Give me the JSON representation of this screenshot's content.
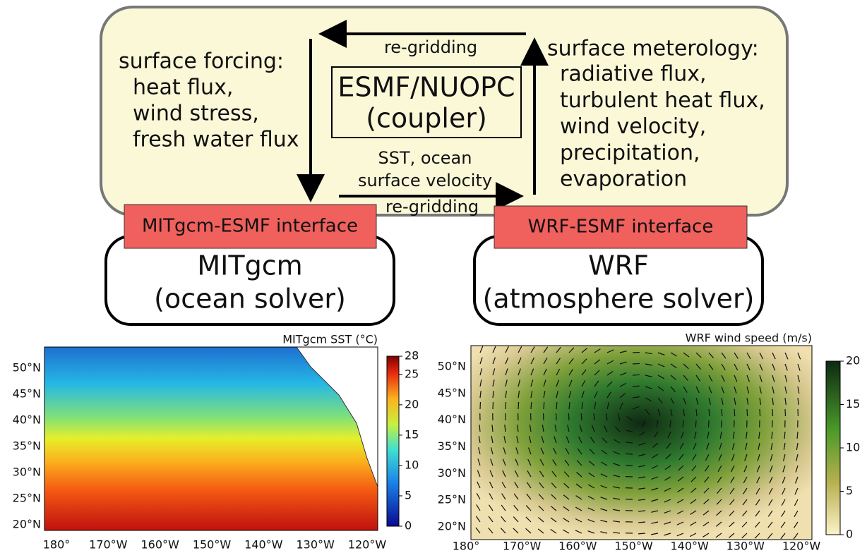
{
  "coupler": {
    "title": "ESMF/NUOPC",
    "subtitle": "(coupler)"
  },
  "ocean_forcing": {
    "heading": "surface forcing:",
    "items": [
      "heat flux,",
      "wind stress,",
      "fresh water flux"
    ]
  },
  "atmosphere_forcing": {
    "heading": "surface meterology:",
    "items": [
      "radiative flux,",
      "turbulent heat flux,",
      "wind velocity,",
      "precipitation,",
      "evaporation"
    ]
  },
  "arrows": {
    "top": "re-gridding",
    "bottom_lines": [
      "SST, ocean",
      "surface velocity"
    ],
    "bottom": "re-gridding"
  },
  "interfaces": [
    "MITgcm-ESMF interface",
    "WRF-ESMF interface"
  ],
  "solvers": [
    {
      "name": "MITgcm",
      "role": "(ocean solver)"
    },
    {
      "name": "WRF",
      "role": "(atmosphere solver)"
    }
  ],
  "maps": [
    {
      "title": "MITgcm SST (°C)",
      "lat_labels": [
        "50°N",
        "45°N",
        "40°N",
        "35°N",
        "30°N",
        "25°N",
        "20°N"
      ],
      "lon_labels": [
        "180°",
        "170°W",
        "160°W",
        "150°W",
        "140°W",
        "130°W",
        "120°W"
      ],
      "colorbar_ticks": [
        0,
        5,
        10,
        15,
        20,
        25,
        28
      ]
    },
    {
      "title": "WRF wind speed (m/s)",
      "lat_labels": [
        "50°N",
        "45°N",
        "40°N",
        "35°N",
        "30°N",
        "25°N",
        "20°N"
      ],
      "lon_labels": [
        "180°",
        "170°W",
        "160°W",
        "150°W",
        "140°W",
        "130°W",
        "120°W"
      ],
      "colorbar_ticks": [
        0,
        5,
        10,
        15,
        20
      ]
    }
  ]
}
